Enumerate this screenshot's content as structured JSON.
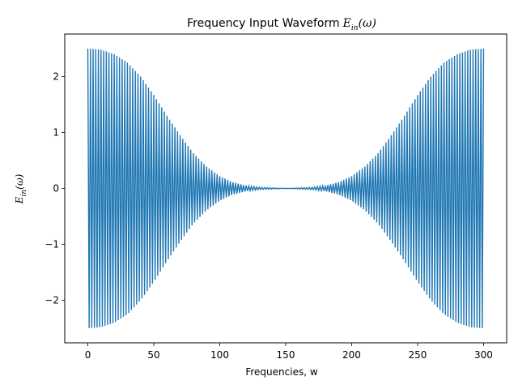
{
  "chart_data": {
    "type": "line",
    "title": "Frequency Input Waveform",
    "title_math": {
      "base": "E",
      "sub": "in",
      "arg": "(ω)"
    },
    "xlabel": "Frequencies, w",
    "ylabel_math": {
      "base": "E",
      "sub": "in",
      "arg": "(ω)"
    },
    "xlim": [
      -17.5,
      317.5
    ],
    "ylim": [
      -2.76,
      2.76
    ],
    "xticks": [
      0,
      50,
      100,
      150,
      200,
      250,
      300
    ],
    "xtick_labels": [
      "0",
      "50",
      "100",
      "150",
      "200",
      "250",
      "300"
    ],
    "yticks": [
      -2,
      -1,
      0,
      1,
      2
    ],
    "ytick_labels": [
      "−2",
      "−1",
      "0",
      "1",
      "2"
    ],
    "grid": false,
    "series": [
      {
        "color": "#1f77b4",
        "x_range": [
          0,
          300
        ],
        "envelope": {
          "x": [
            0,
            10,
            20,
            30,
            40,
            50,
            60,
            70,
            80,
            90,
            100,
            110,
            120,
            130,
            140,
            150,
            160,
            170,
            180,
            190,
            200,
            210,
            220,
            230,
            240,
            250,
            260,
            270,
            280,
            290,
            300
          ],
          "amplitude": [
            2.5,
            2.48,
            2.4,
            2.25,
            2.0,
            1.67,
            1.3,
            0.95,
            0.63,
            0.39,
            0.22,
            0.11,
            0.05,
            0.02,
            0.01,
            0.0,
            0.01,
            0.02,
            0.05,
            0.11,
            0.22,
            0.39,
            0.63,
            0.95,
            1.3,
            1.67,
            2.0,
            2.25,
            2.4,
            2.48,
            2.5
          ]
        },
        "oscillation_period": 2
      }
    ]
  }
}
